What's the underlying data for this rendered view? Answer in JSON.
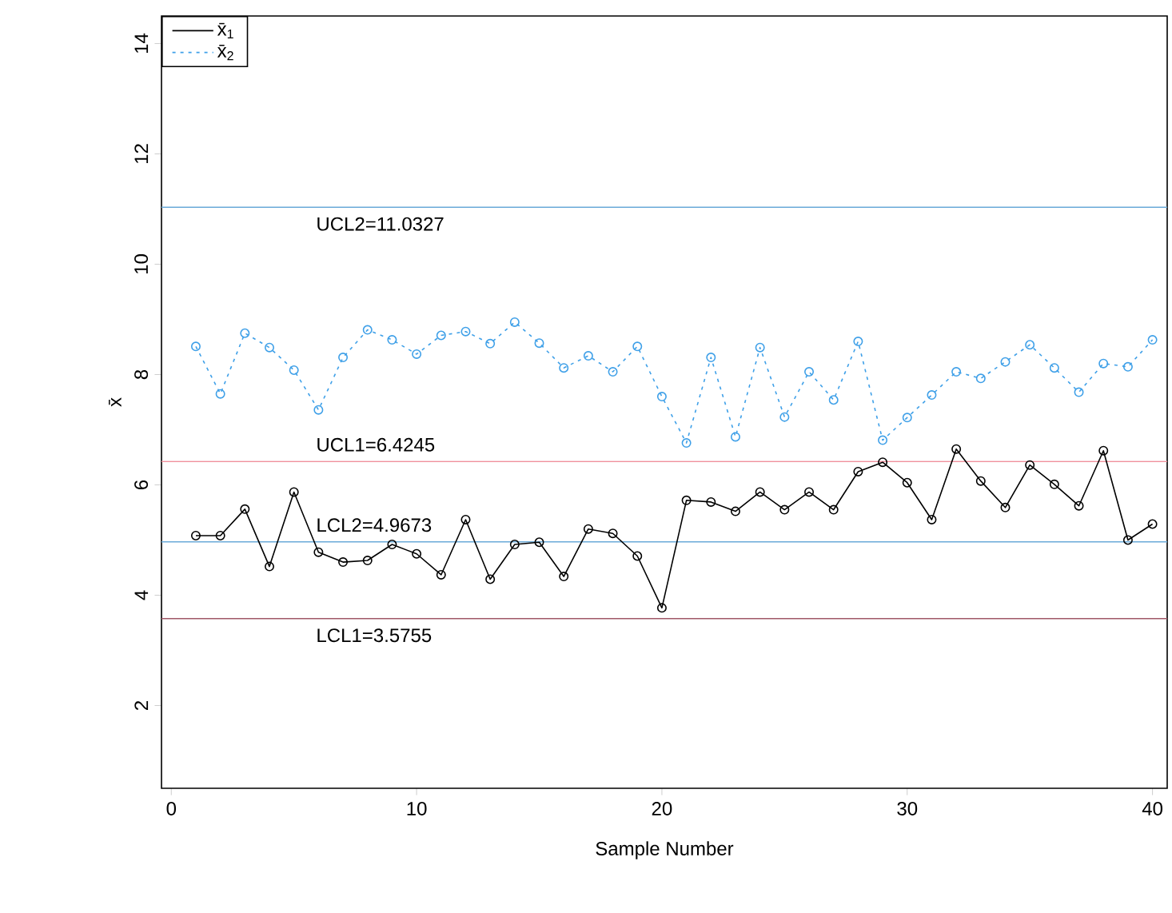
{
  "chart_data": {
    "type": "line",
    "xlabel": "Sample Number",
    "ylabel": "x̄",
    "x": [
      1,
      2,
      3,
      4,
      5,
      6,
      7,
      8,
      9,
      10,
      11,
      12,
      13,
      14,
      15,
      16,
      17,
      18,
      19,
      20,
      21,
      22,
      23,
      24,
      25,
      26,
      27,
      28,
      29,
      30,
      31,
      32,
      33,
      34,
      35,
      36,
      37,
      38,
      39,
      40
    ],
    "series": [
      {
        "name": "x̄$_{1}$",
        "color": "#000000",
        "line_style": "solid",
        "values": [
          5.08,
          5.08,
          5.56,
          4.52,
          5.87,
          4.78,
          4.6,
          4.63,
          4.92,
          4.75,
          4.37,
          5.37,
          4.29,
          4.92,
          4.96,
          4.34,
          5.2,
          5.12,
          4.71,
          3.77,
          5.72,
          5.69,
          5.52,
          5.87,
          5.55,
          5.87,
          5.55,
          6.24,
          6.41,
          6.04,
          5.37,
          6.65,
          6.07,
          5.59,
          6.36,
          6.01,
          5.62,
          6.62,
          5.0,
          5.29
        ]
      },
      {
        "name": "x̄$_{2}$",
        "color": "#3fa0e8",
        "line_style": "dotted",
        "values": [
          8.51,
          7.65,
          8.75,
          8.49,
          8.08,
          7.36,
          8.31,
          8.81,
          8.63,
          8.37,
          8.71,
          8.78,
          8.56,
          8.95,
          8.57,
          8.12,
          8.34,
          8.05,
          8.51,
          7.6,
          6.76,
          8.31,
          6.87,
          8.49,
          7.23,
          8.05,
          7.54,
          8.6,
          6.81,
          7.22,
          7.63,
          8.05,
          7.93,
          8.23,
          8.54,
          8.12,
          7.68,
          8.2,
          8.14,
          8.63
        ]
      }
    ],
    "ref_lines": [
      {
        "axis": "y",
        "value": 11.0327,
        "label": "UCL2=11.0327",
        "color": "#6aaad8"
      },
      {
        "axis": "y",
        "value": 6.4245,
        "label": "UCL1=6.4245",
        "color": "#f0909c"
      },
      {
        "axis": "y",
        "value": 4.9673,
        "label": "LCL2=4.9673",
        "color": "#6aaad8"
      },
      {
        "axis": "y",
        "value": 3.5755,
        "label": "LCL1=3.5755",
        "color": "#a05868"
      }
    ],
    "xlim": [
      -0.4,
      40.6
    ],
    "ylim": [
      0.5,
      14.5
    ],
    "xticks": [
      0,
      10,
      20,
      30,
      40
    ],
    "yticks": [
      2,
      4,
      6,
      8,
      10,
      12,
      14
    ],
    "marker": "circle",
    "legend": "top left",
    "grid": false
  }
}
